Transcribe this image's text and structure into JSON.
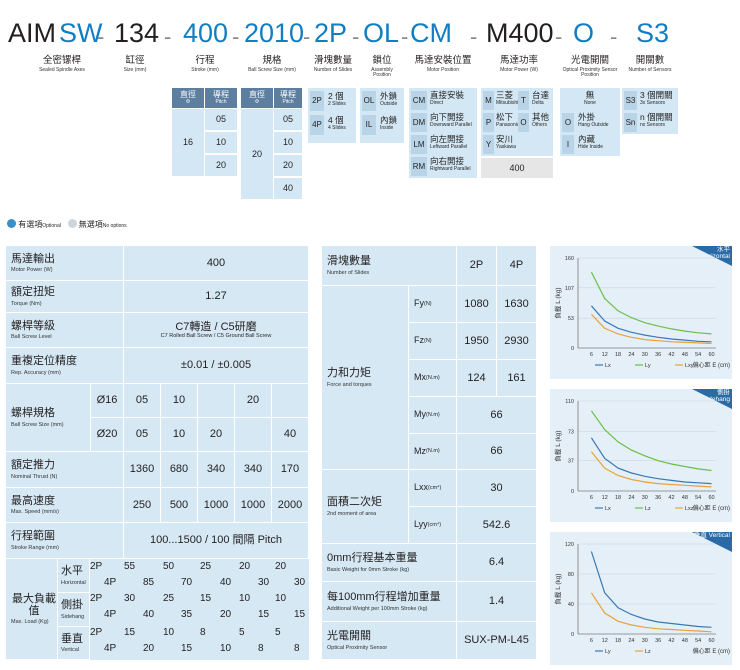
{
  "model": {
    "segments": [
      {
        "text": "AIM",
        "color": "#231f20"
      },
      {
        "text": "SW",
        "color": "#0f7ec2"
      },
      {
        "text": "134",
        "color": "#231f20"
      },
      {
        "text": "400",
        "color": "#0f7ec2"
      },
      {
        "text": "2010",
        "color": "#0f7ec2"
      },
      {
        "text": "2P",
        "color": "#0f7ec2"
      },
      {
        "text": "OL",
        "color": "#0f7ec2"
      },
      {
        "text": "CM",
        "color": "#0f7ec2"
      },
      {
        "text": "M400",
        "color": "#231f20"
      },
      {
        "text": "O",
        "color": "#0f7ec2"
      },
      {
        "text": "S3",
        "color": "#0f7ec2"
      }
    ],
    "dash": "-",
    "captions": [
      {
        "zh": "全密镙桿",
        "en": "Sealed Spindle Axes"
      },
      {
        "zh": "缸徑",
        "en": "Size (mm)"
      },
      {
        "zh": "行程",
        "en": "Stroke (mm)"
      },
      {
        "zh": "規格",
        "en": "Ball Screw Size (mm)"
      },
      {
        "zh": "滑塊數量",
        "en": "Number of Slides"
      },
      {
        "zh": "鎖位",
        "en": "Assembly Position"
      },
      {
        "zh": "馬達安裝位置",
        "en": "Motor Position"
      },
      {
        "zh": "馬達功率",
        "en": "Motor Power (W)"
      },
      {
        "zh": "光電開關",
        "en": "Optical Proximity Sensor Position"
      },
      {
        "zh": "開關數",
        "en": "Number of Sensors"
      }
    ]
  },
  "stroke_opts": {
    "h1": "直徑",
    "h1e": "Φ",
    "h2": "導程",
    "h2e": "Pitch",
    "dia": "16",
    "pitches": [
      "05",
      "10",
      "20"
    ]
  },
  "spec_opts": {
    "h1": "直徑",
    "h1e": "Φ",
    "h2": "導程",
    "h2e": "Pitch",
    "dia": "20",
    "pitches": [
      "05",
      "10",
      "20",
      "40"
    ]
  },
  "slides_opts": [
    {
      "tag": "2P",
      "zh": "2 個",
      "en": "2 Slides"
    },
    {
      "tag": "4P",
      "zh": "4 個",
      "en": "4 Slides"
    }
  ],
  "lock_opts": [
    {
      "tag": "OL",
      "zh": "外鎖",
      "en": "Outside"
    },
    {
      "tag": "IL",
      "zh": "內鎖",
      "en": "Inside"
    }
  ],
  "motor_pos_opts": [
    {
      "tag": "CM",
      "zh": "直接安裝",
      "en": "Direct"
    },
    {
      "tag": "DM",
      "zh": "向下開接",
      "en": "Downward Parallel"
    },
    {
      "tag": "LM",
      "zh": "向左開接",
      "en": "Leftward Parallel"
    },
    {
      "tag": "RM",
      "zh": "向右開接",
      "en": "Rightward Parallel"
    }
  ],
  "motor_brand_opts": [
    {
      "tag": "M",
      "zh": "三菱",
      "en": "Mitsubishi"
    },
    {
      "tag": "P",
      "zh": "松下",
      "en": "Panasonic"
    },
    {
      "tag": "Y",
      "zh": "安川",
      "en": "Yaskawa"
    }
  ],
  "motor_brand_opts2": [
    {
      "tag": "T",
      "zh": "台達",
      "en": "Delta"
    },
    {
      "tag": "O",
      "zh": "其他",
      "en": "Others"
    }
  ],
  "motor_power": "400",
  "sensor_pos_opts": [
    {
      "tag": "",
      "zh": "無",
      "en": "None"
    },
    {
      "tag": "O",
      "zh": "外掛",
      "en": "Hang Outside"
    },
    {
      "tag": "I",
      "zh": "內藏",
      "en": "Hide Inside"
    }
  ],
  "sensor_num_opts": [
    {
      "tag": "S3",
      "zh": "3 個開關",
      "en": "3x Sensors"
    },
    {
      "tag": "Sn",
      "zh": "n 個開關",
      "en": "nx Sensors"
    }
  ],
  "legend": {
    "optional": "有選項",
    "optional_en": "Optional",
    "none": "無選項",
    "none_en": "No options"
  },
  "left_table": {
    "motor_power": {
      "zh": "馬達輸出",
      "en": "Motor Power (W)",
      "value": "400"
    },
    "torque": {
      "zh": "額定扭矩",
      "en": "Torque (Nm)",
      "value": "1.27"
    },
    "screw_level": {
      "zh": "螺桿等級",
      "en": "Ball Screw Level",
      "value": "C7轉造 / C5研磨",
      "value_en": "C7 Rolled Ball Screw / C5 Ground Ball Screw"
    },
    "accuracy": {
      "zh": "重複定位精度",
      "en": "Rep. Accuracy (mm)",
      "value": "±0.01 / ±0.005"
    },
    "screw_size": {
      "zh": "螺桿規格",
      "en": "Ball Screw Size (mm)",
      "row1": [
        "Ø16",
        "05",
        "10",
        "",
        "20",
        ""
      ],
      "row2": [
        "Ø20",
        "05",
        "10",
        "20",
        "",
        "40"
      ]
    },
    "thrust": {
      "zh": "額定推力",
      "en": "Nominal Thrust (N)",
      "values": [
        "1360",
        "680",
        "340",
        "340",
        "170"
      ]
    },
    "speed": {
      "zh": "最高速度",
      "en": "Max. Speed (mm/s)",
      "values": [
        "250",
        "500",
        "1000",
        "1000",
        "2000"
      ]
    },
    "stroke": {
      "zh": "行程範圍",
      "en": "Stroke Range (mm)",
      "value": "100...1500 / 100 間隔 Pitch"
    },
    "max_load": {
      "zh": "最大負載值",
      "en": "Max. Load (Kg)",
      "rows": [
        {
          "zh": "水平",
          "en": "Horizontal",
          "v2": [
            "55",
            "50",
            "25",
            "20",
            "20"
          ],
          "v4": [
            "85",
            "70",
            "40",
            "30",
            "30"
          ]
        },
        {
          "zh": "側掛",
          "en": "Sidehang",
          "v2": [
            "30",
            "25",
            "15",
            "10",
            "10"
          ],
          "v4": [
            "40",
            "35",
            "20",
            "15",
            "15"
          ]
        },
        {
          "zh": "垂直",
          "en": "Vertical",
          "v2": [
            "15",
            "10",
            "8",
            "5",
            "5"
          ],
          "v4": [
            "20",
            "15",
            "10",
            "8",
            "8"
          ]
        }
      ],
      "tag2": "2P",
      "tag4": "4P"
    }
  },
  "right_table": {
    "slides": {
      "zh": "滑塊數量",
      "en": "Number of Slides",
      "v": [
        "2P",
        "4P"
      ]
    },
    "force": {
      "zh": "力和力矩",
      "en": "Force and torques",
      "rows": [
        {
          "label": "Fy",
          "unit": "(N)",
          "v": [
            "1080",
            "1630"
          ]
        },
        {
          "label": "Fz",
          "unit": "(N)",
          "v": [
            "1950",
            "2930"
          ]
        },
        {
          "label": "Mx",
          "unit": "(N.m)",
          "v": [
            "124",
            "161"
          ]
        },
        {
          "label": "My",
          "unit": "(N.m)",
          "v": [
            "66"
          ]
        },
        {
          "label": "Mz",
          "unit": "(N.m)",
          "v": [
            "66"
          ]
        }
      ]
    },
    "moment": {
      "zh": "面積二次矩",
      "en": "2nd moment of area",
      "rows": [
        {
          "label": "Lxx",
          "unit": "(cm⁴)",
          "v": "30"
        },
        {
          "label": "Lyy",
          "unit": "(cm⁴)",
          "v": "542.6"
        }
      ]
    },
    "base_weight": {
      "zh": "0mm行程基本重量",
      "en": "Basic Weight for 0mm Stroke (kg)",
      "value": "6.4"
    },
    "add_weight": {
      "zh": "每100mm行程增加重量",
      "en": "Additional Weight per 100mm Stroke (kg)",
      "value": "1.4"
    },
    "sensor": {
      "zh": "光電開關",
      "en": "Optical Proximity Sensor",
      "value": "SUX-PM-L45"
    }
  },
  "chart_data": [
    {
      "type": "line",
      "title": "",
      "ribbon": "水平 Horizontal",
      "ylabel": "負載 L (kg)",
      "xlabel": "偏心距 E (cm)",
      "x": [
        6,
        12,
        18,
        24,
        30,
        36,
        42,
        48,
        54,
        60
      ],
      "ylim": [
        0,
        160
      ],
      "yticks": [
        0,
        53,
        107,
        160
      ],
      "series": [
        {
          "name": "Lx",
          "color": "#3a78b5",
          "values": [
            75,
            48,
            35,
            28,
            23,
            19,
            16,
            14,
            12,
            11
          ]
        },
        {
          "name": "Ly",
          "color": "#6abf4b",
          "values": [
            135,
            88,
            66,
            54,
            45,
            39,
            34,
            30,
            27,
            25
          ]
        },
        {
          "name": "Lxy",
          "color": "#e8a23a",
          "values": [
            60,
            35,
            25,
            19,
            15,
            13,
            11,
            10,
            9,
            8
          ]
        }
      ]
    },
    {
      "type": "line",
      "title": "",
      "ribbon": "側掛 Sidehang",
      "ylabel": "負載 L (kg)",
      "xlabel": "偏心距 E (cm)",
      "x": [
        6,
        12,
        18,
        24,
        30,
        36,
        42,
        48,
        54,
        60
      ],
      "ylim": [
        0,
        110
      ],
      "yticks": [
        0,
        37,
        73,
        110
      ],
      "series": [
        {
          "name": "Lx",
          "color": "#3a78b5",
          "values": [
            65,
            40,
            28,
            22,
            18,
            15,
            13,
            11,
            10,
            9
          ]
        },
        {
          "name": "Lz",
          "color": "#6abf4b",
          "values": [
            98,
            75,
            60,
            50,
            43,
            37,
            33,
            30,
            27,
            25
          ]
        },
        {
          "name": "Lxz",
          "color": "#e8a23a",
          "values": [
            48,
            28,
            19,
            14,
            11,
            9,
            8,
            7,
            6,
            5
          ]
        }
      ]
    },
    {
      "type": "line",
      "title": "",
      "ribbon": "垂直 Vertical",
      "ylabel": "負載 L (kg)",
      "xlabel": "偏心距 E (cm)",
      "x": [
        6,
        12,
        18,
        24,
        30,
        36,
        42,
        48,
        54,
        60
      ],
      "ylim": [
        0,
        120
      ],
      "yticks": [
        0,
        40,
        80,
        120
      ],
      "series": [
        {
          "name": "Ly",
          "color": "#3a78b5",
          "values": [
            110,
            55,
            35,
            26,
            20,
            16,
            14,
            12,
            10,
            9
          ]
        },
        {
          "name": "Lz",
          "color": "#e8a23a",
          "values": [
            55,
            28,
            17,
            12,
            9,
            7,
            6,
            5,
            4,
            3
          ]
        }
      ]
    }
  ]
}
